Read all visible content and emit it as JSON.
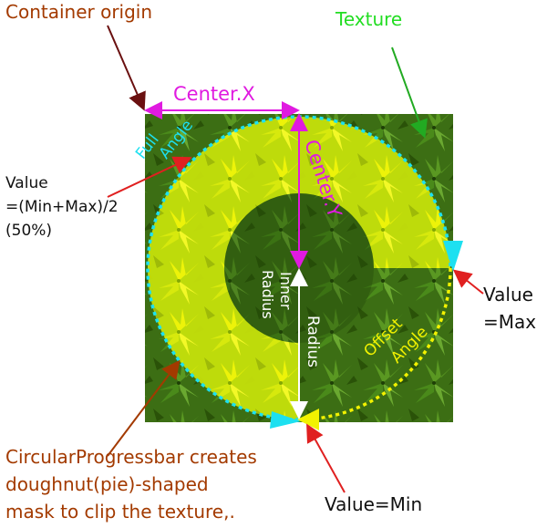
{
  "labels": {
    "container_origin": "Container origin",
    "texture": "Texture",
    "center_x": "Center.X",
    "center_y": "Center.Y",
    "full_angle_line1": "Full",
    "full_angle_line2": "Angle",
    "value_mid_line1": "Value",
    "value_mid_line2": "=(Min+Max)/2",
    "value_mid_line3": "(50%)",
    "value_max_line1": "Value",
    "value_max_line2": "=Max",
    "inner_radius_line1": "Inner",
    "inner_radius_line2": "Radius",
    "radius": "Radius",
    "offset_angle_line1": "Offset",
    "offset_angle_line2": "Angle",
    "value_min": "Value=Min",
    "caption_line1": "CircularProgressbar creates",
    "caption_line2": "doughnut(pie)-shaped",
    "caption_line3": "mask to clip the texture,."
  },
  "colors": {
    "leaf_dark": "#2f5a0f",
    "leaf_mid": "#4f8a1c",
    "leaf_light": "#e6f20a",
    "cyan": "#1de0f0",
    "magenta": "#e01ae0",
    "yellow": "#f2f200",
    "green_label": "#22dd22",
    "rust": "#a33a00",
    "maroon_arrow": "#6a1010",
    "red_arrow": "#e02020"
  }
}
